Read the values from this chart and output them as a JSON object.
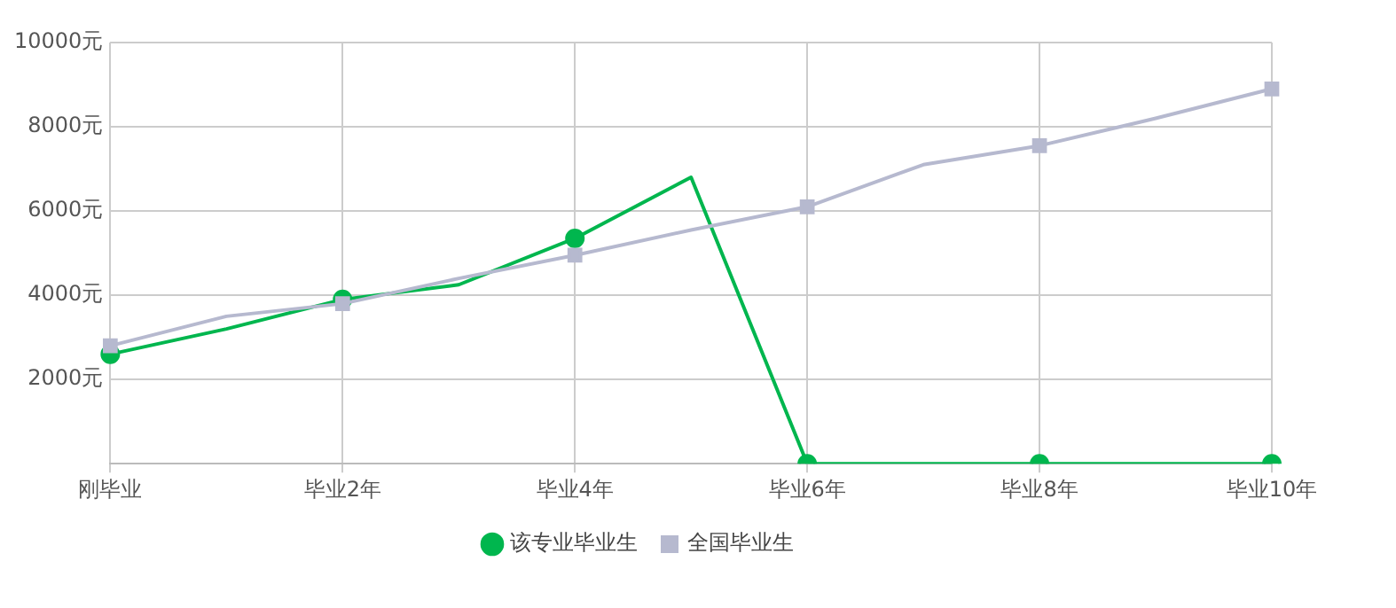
{
  "chart_data": {
    "type": "line",
    "categories": [
      "刚毕业",
      null,
      "毕业2年",
      null,
      "毕业4年",
      null,
      "毕业6年",
      null,
      "毕业8年",
      null,
      "毕业10年"
    ],
    "series": [
      {
        "name": "该专业毕业生",
        "color": "#00b64e",
        "marker": "circle",
        "values": [
          2600,
          3200,
          3900,
          4250,
          5350,
          6800,
          0,
          0,
          0,
          0,
          0
        ]
      },
      {
        "name": "全国毕业生",
        "color": "#b6b9cf",
        "marker": "square",
        "values": [
          2800,
          3500,
          3800,
          4400,
          4950,
          5550,
          6100,
          7100,
          7550,
          8200,
          8900
        ]
      }
    ],
    "ylim": [
      0,
      10000
    ],
    "yticks": [
      {
        "value": 0,
        "label": null
      },
      {
        "value": 2000,
        "label": "2000元"
      },
      {
        "value": 4000,
        "label": "4000元"
      },
      {
        "value": 6000,
        "label": "6000元"
      },
      {
        "value": 8000,
        "label": "8000元"
      },
      {
        "value": 10000,
        "label": "10000元"
      }
    ],
    "grid": true,
    "legend": "bottom",
    "line_style": "solid"
  }
}
